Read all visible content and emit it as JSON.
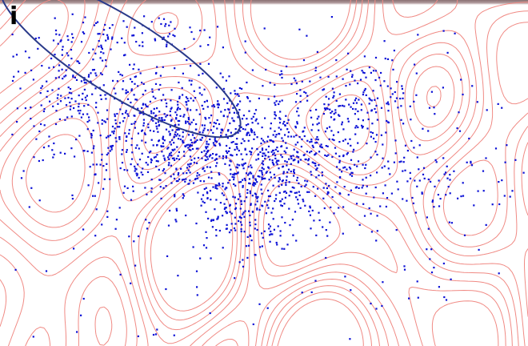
{
  "figure": {
    "panel_label": "i"
  },
  "chart_data": {
    "type": "scatter",
    "title": "",
    "xlabel": "",
    "ylabel": "",
    "axes_visible": false,
    "grid": false,
    "legend": "none",
    "overlays": [
      "density-contours",
      "ellipse-boundary"
    ],
    "colors": {
      "points": "#0b10d6",
      "contours": "#f08a84",
      "ellipse": "#2a3a8a"
    },
    "series": [
      {
        "values": [
          {
            "x": 0.32,
            "y": 0.38,
            "n": 700,
            "sx": 0.11,
            "sy": 0.1
          },
          {
            "x": 0.52,
            "y": 0.47,
            "n": 500,
            "sx": 0.09,
            "sy": 0.08
          },
          {
            "x": 0.45,
            "y": 0.62,
            "n": 120,
            "sx": 0.05,
            "sy": 0.06
          },
          {
            "x": 0.68,
            "y": 0.28,
            "n": 180,
            "sx": 0.08,
            "sy": 0.06
          },
          {
            "x": 0.1,
            "y": 0.22,
            "n": 140,
            "sx": 0.07,
            "sy": 0.07
          },
          {
            "x": 0.22,
            "y": 0.08,
            "n": 90,
            "sx": 0.1,
            "sy": 0.04
          },
          {
            "x": 0.8,
            "y": 0.52,
            "n": 90,
            "sx": 0.1,
            "sy": 0.07
          },
          {
            "x": 0.5,
            "y": 0.5,
            "n": 260,
            "sx": 0.35,
            "sy": 0.3
          }
        ]
      }
    ]
  }
}
